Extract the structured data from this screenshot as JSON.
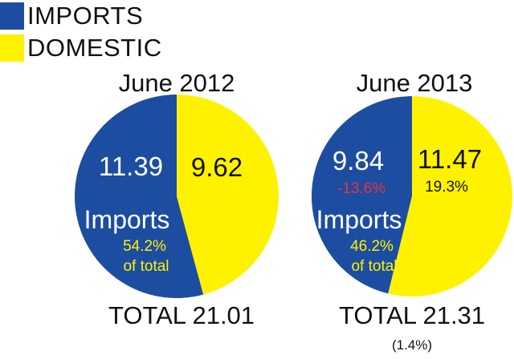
{
  "legend": [
    {
      "label": "IMPORTS",
      "color": "#1c4da1"
    },
    {
      "label": "DOMESTIC",
      "color": "#fff200"
    }
  ],
  "colors": {
    "imports_pct": "#fff200",
    "imports_change": "#e8343c",
    "dark_text": "#111111"
  },
  "chart_data": [
    {
      "type": "pie",
      "title": "June 2012",
      "slices": [
        {
          "label": "IMPORTS",
          "value": 11.39,
          "color": "#1c4da1"
        },
        {
          "label": "DOMESTIC",
          "value": 9.62,
          "color": "#fff200"
        }
      ],
      "inner_label": "Imports",
      "imports_share_lines": [
        "54.2%",
        "of total"
      ],
      "total": "TOTAL 21.01"
    },
    {
      "type": "pie",
      "title": "June 2013",
      "slices": [
        {
          "label": "IMPORTS",
          "value": 9.84,
          "color": "#1c4da1",
          "change": "-13.6%"
        },
        {
          "label": "DOMESTIC",
          "value": 11.47,
          "color": "#fff200",
          "change": "19.3%"
        }
      ],
      "inner_label": "Imports",
      "imports_share_lines": [
        "46.2%",
        "of total"
      ],
      "total": "TOTAL 21.31",
      "total_change": "(1.4%)"
    }
  ]
}
